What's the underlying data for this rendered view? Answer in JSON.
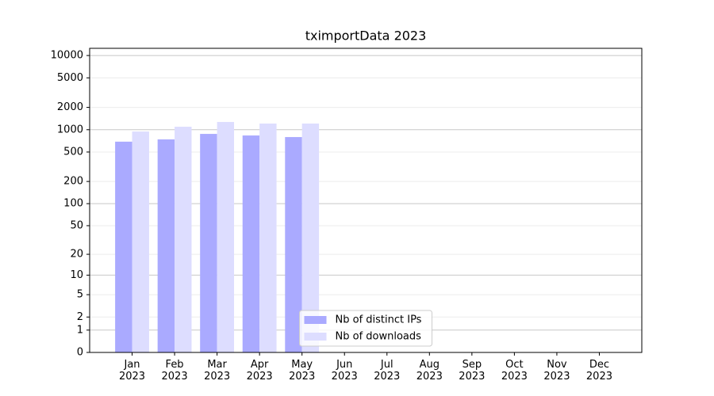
{
  "chart_data": {
    "type": "bar",
    "title": "tximportData 2023",
    "scale": "log1p",
    "categories": [
      "Jan\n2023",
      "Feb\n2023",
      "Mar\n2023",
      "Apr\n2023",
      "May\n2023",
      "Jun\n2023",
      "Jul\n2023",
      "Aug\n2023",
      "Sep\n2023",
      "Oct\n2023",
      "Nov\n2023",
      "Dec\n2023"
    ],
    "series": [
      {
        "name": "Nb of distinct IPs",
        "color": "#aaaaff",
        "values": [
          690,
          740,
          878,
          836,
          796,
          null,
          null,
          null,
          null,
          null,
          null,
          null
        ]
      },
      {
        "name": "Nb of downloads",
        "color": "#ddddff",
        "values": [
          945,
          1096,
          1270,
          1210,
          1210,
          null,
          null,
          null,
          null,
          null,
          null,
          null
        ]
      }
    ],
    "ylim": [
      0,
      12500
    ],
    "yticks": [
      0,
      1,
      2,
      5,
      10,
      20,
      50,
      100,
      200,
      500,
      1000,
      2000,
      5000,
      10000
    ],
    "grid": true,
    "legend": "lower center"
  }
}
